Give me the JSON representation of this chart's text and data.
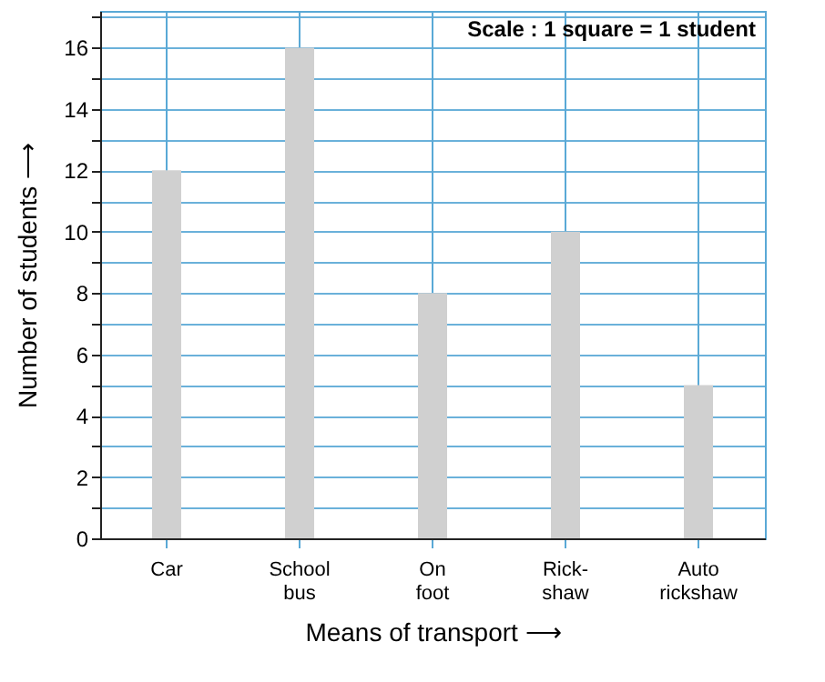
{
  "chart_data": {
    "type": "bar",
    "xlabel": "Means of transport ⟶",
    "ylabel": "Number of students ⟶",
    "categories": [
      "Car",
      "School bus",
      "On foot",
      "Rick-shaw",
      "Auto rickshaw"
    ],
    "values": [
      12,
      16,
      8,
      10,
      5
    ],
    "color": "#d0d0d0",
    "ylim": [
      0,
      17.2
    ],
    "yticks": [
      0,
      {
        "value": 1,
        "label": null
      },
      2,
      {
        "value": 3,
        "label": null
      },
      4,
      {
        "value": 5,
        "label": null
      },
      6,
      {
        "value": 7,
        "label": null
      },
      8,
      {
        "value": 9,
        "label": null
      },
      10,
      {
        "value": 11,
        "label": null
      },
      12,
      {
        "value": 13,
        "label": null
      },
      14,
      {
        "value": 15,
        "label": null
      },
      16,
      {
        "value": 17,
        "label": null
      }
    ],
    "grid": true,
    "annotations": [
      "Scale : 1 square = 1 student"
    ]
  }
}
